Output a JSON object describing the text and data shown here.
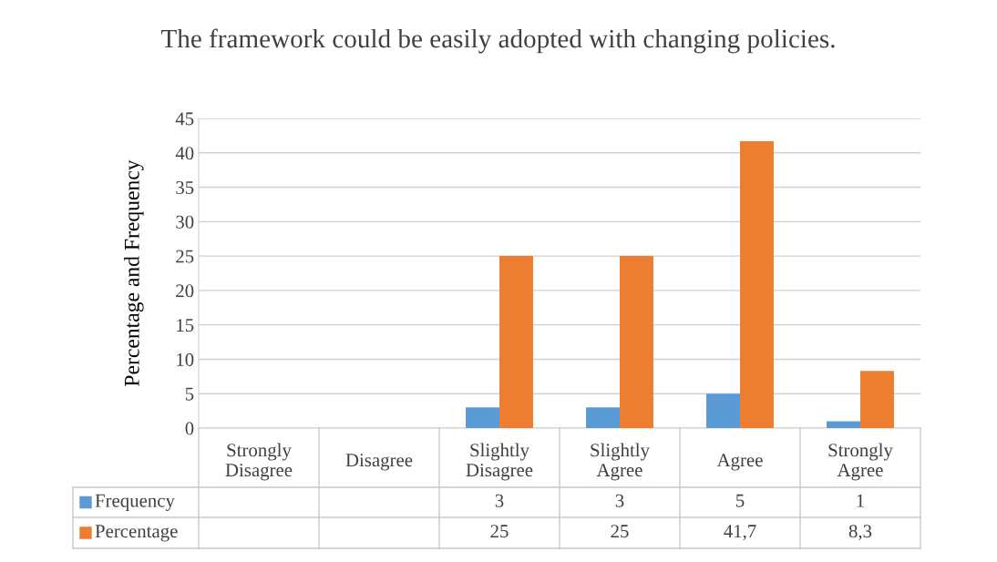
{
  "chart_data": {
    "type": "bar",
    "title": "The framework could be easily adopted with changing policies.",
    "ylabel": "Percentage and Frequency",
    "categories": [
      "Strongly Disagree",
      "Disagree",
      "Slightly Disagree",
      "Slightly Agree",
      "Agree",
      "Strongly Agree"
    ],
    "series": [
      {
        "name": "Frequency",
        "color": "#5b9bd5",
        "values": [
          null,
          null,
          3,
          3,
          5,
          1
        ],
        "value_labels": [
          null,
          null,
          "3",
          "3",
          "5",
          "1"
        ]
      },
      {
        "name": "Percentage",
        "color": "#ed7d31",
        "values": [
          null,
          null,
          25,
          25,
          41.7,
          8.3
        ],
        "value_labels": [
          null,
          null,
          "25",
          "25",
          "41,7",
          "8,3"
        ]
      }
    ],
    "ylim": [
      0,
      45
    ],
    "yticks": [
      0,
      5,
      10,
      15,
      20,
      25,
      30,
      35,
      40,
      45
    ],
    "grid": "y",
    "legend": "bottom"
  }
}
